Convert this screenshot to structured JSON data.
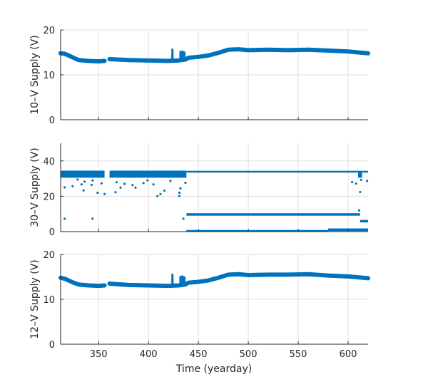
{
  "chart_data": [
    {
      "type": "scatter",
      "ylabel": "10–V Supply (V)",
      "xlim": [
        312,
        620
      ],
      "ylim": [
        0,
        20
      ],
      "yticks": [
        0,
        10,
        20
      ],
      "xticks": [
        350,
        400,
        450,
        500,
        550,
        600
      ],
      "grid": true,
      "color": "#0072BD",
      "series": [
        {
          "name": "main",
          "segments": [
            {
              "x": [
                312,
                316,
                320,
                325,
                330,
                340,
                350,
                356
              ],
              "y": [
                14.8,
                14.7,
                14.3,
                13.8,
                13.3,
                13.1,
                13.0,
                13.1
              ]
            },
            {
              "x": [
                361,
                380,
                400,
                420,
                430,
                437,
                440,
                450,
                460,
                470,
                480,
                490,
                500,
                520,
                540,
                560,
                580,
                600,
                620
              ],
              "y": [
                13.5,
                13.3,
                13.2,
                13.1,
                13.2,
                13.4,
                13.8,
                14.0,
                14.3,
                14.9,
                15.6,
                15.7,
                15.5,
                15.6,
                15.5,
                15.6,
                15.4,
                15.2,
                14.8
              ]
            }
          ]
        },
        {
          "name": "spikes",
          "x": [
            424,
            424,
            432,
            434,
            436
          ],
          "y": [
            15.8,
            14.5,
            15.3,
            15.4,
            15.2
          ]
        }
      ]
    },
    {
      "type": "scatter",
      "ylabel": "30–V Supply (V)",
      "xlim": [
        312,
        620
      ],
      "ylim": [
        0,
        50
      ],
      "yticks": [
        0,
        20,
        40
      ],
      "xticks": [
        350,
        400,
        450,
        500,
        550,
        600
      ],
      "grid": true,
      "color": "#0072BD",
      "bands": [
        {
          "x": [
            312,
            356
          ],
          "y": [
            30.5,
            34.5
          ]
        },
        {
          "x": [
            361,
            438
          ],
          "y": [
            30.5,
            34.5
          ]
        },
        {
          "x": [
            438,
            620
          ],
          "y": [
            33.6,
            34.4
          ]
        },
        {
          "x": [
            438,
            612
          ],
          "y": [
            9,
            10.4
          ]
        },
        {
          "x": [
            438,
            580
          ],
          "y": [
            0,
            0.9
          ]
        },
        {
          "x": [
            580,
            620
          ],
          "y": [
            0.3,
            1.8
          ]
        },
        {
          "x": [
            612,
            620
          ],
          "y": [
            5.2,
            6.6
          ]
        },
        {
          "x": [
            610,
            614
          ],
          "y": [
            30.5,
            33.5
          ]
        }
      ],
      "outliers": {
        "x": [
          316,
          316,
          324,
          329,
          333,
          335,
          336,
          343,
          344,
          344,
          349,
          353,
          356,
          367,
          368,
          372,
          376,
          384,
          387,
          395,
          399,
          405,
          409,
          412,
          416,
          422,
          431,
          431,
          432,
          437,
          435,
          604,
          608,
          611,
          612,
          619,
          613
        ],
        "y": [
          25,
          7.3,
          25.7,
          29.5,
          26.7,
          23.3,
          28.3,
          26.4,
          7.3,
          29,
          22,
          27.3,
          21.3,
          22.3,
          27.9,
          24.9,
          27,
          26.3,
          24.9,
          27.5,
          29,
          26.7,
          20.1,
          21.2,
          23.2,
          28.7,
          22,
          20.1,
          24.5,
          27.6,
          7.3,
          28,
          27.2,
          12,
          22.4,
          28.7,
          29.3
        ]
      }
    },
    {
      "type": "scatter",
      "ylabel": "12–V Supply (V)",
      "xlabel": "Time (yearday)",
      "xlim": [
        312,
        620
      ],
      "ylim": [
        0,
        20
      ],
      "yticks": [
        0,
        10,
        20
      ],
      "xticks": [
        350,
        400,
        450,
        500,
        550,
        600
      ],
      "grid": true,
      "color": "#0072BD",
      "series": [
        {
          "name": "main",
          "segments": [
            {
              "x": [
                312,
                316,
                320,
                325,
                330,
                340,
                350,
                356
              ],
              "y": [
                14.8,
                14.6,
                14.2,
                13.7,
                13.3,
                13.1,
                13.0,
                13.1
              ]
            },
            {
              "x": [
                361,
                380,
                400,
                420,
                430,
                437,
                440,
                450,
                460,
                470,
                480,
                490,
                500,
                520,
                540,
                560,
                580,
                600,
                620
              ],
              "y": [
                13.5,
                13.2,
                13.1,
                13.0,
                13.1,
                13.3,
                13.7,
                13.9,
                14.2,
                14.8,
                15.5,
                15.6,
                15.4,
                15.5,
                15.5,
                15.6,
                15.3,
                15.1,
                14.7
              ]
            }
          ]
        },
        {
          "name": "spikes",
          "x": [
            424,
            424,
            432,
            434,
            436
          ],
          "y": [
            15.7,
            14.4,
            15.2,
            15.3,
            15.1
          ]
        }
      ]
    }
  ]
}
